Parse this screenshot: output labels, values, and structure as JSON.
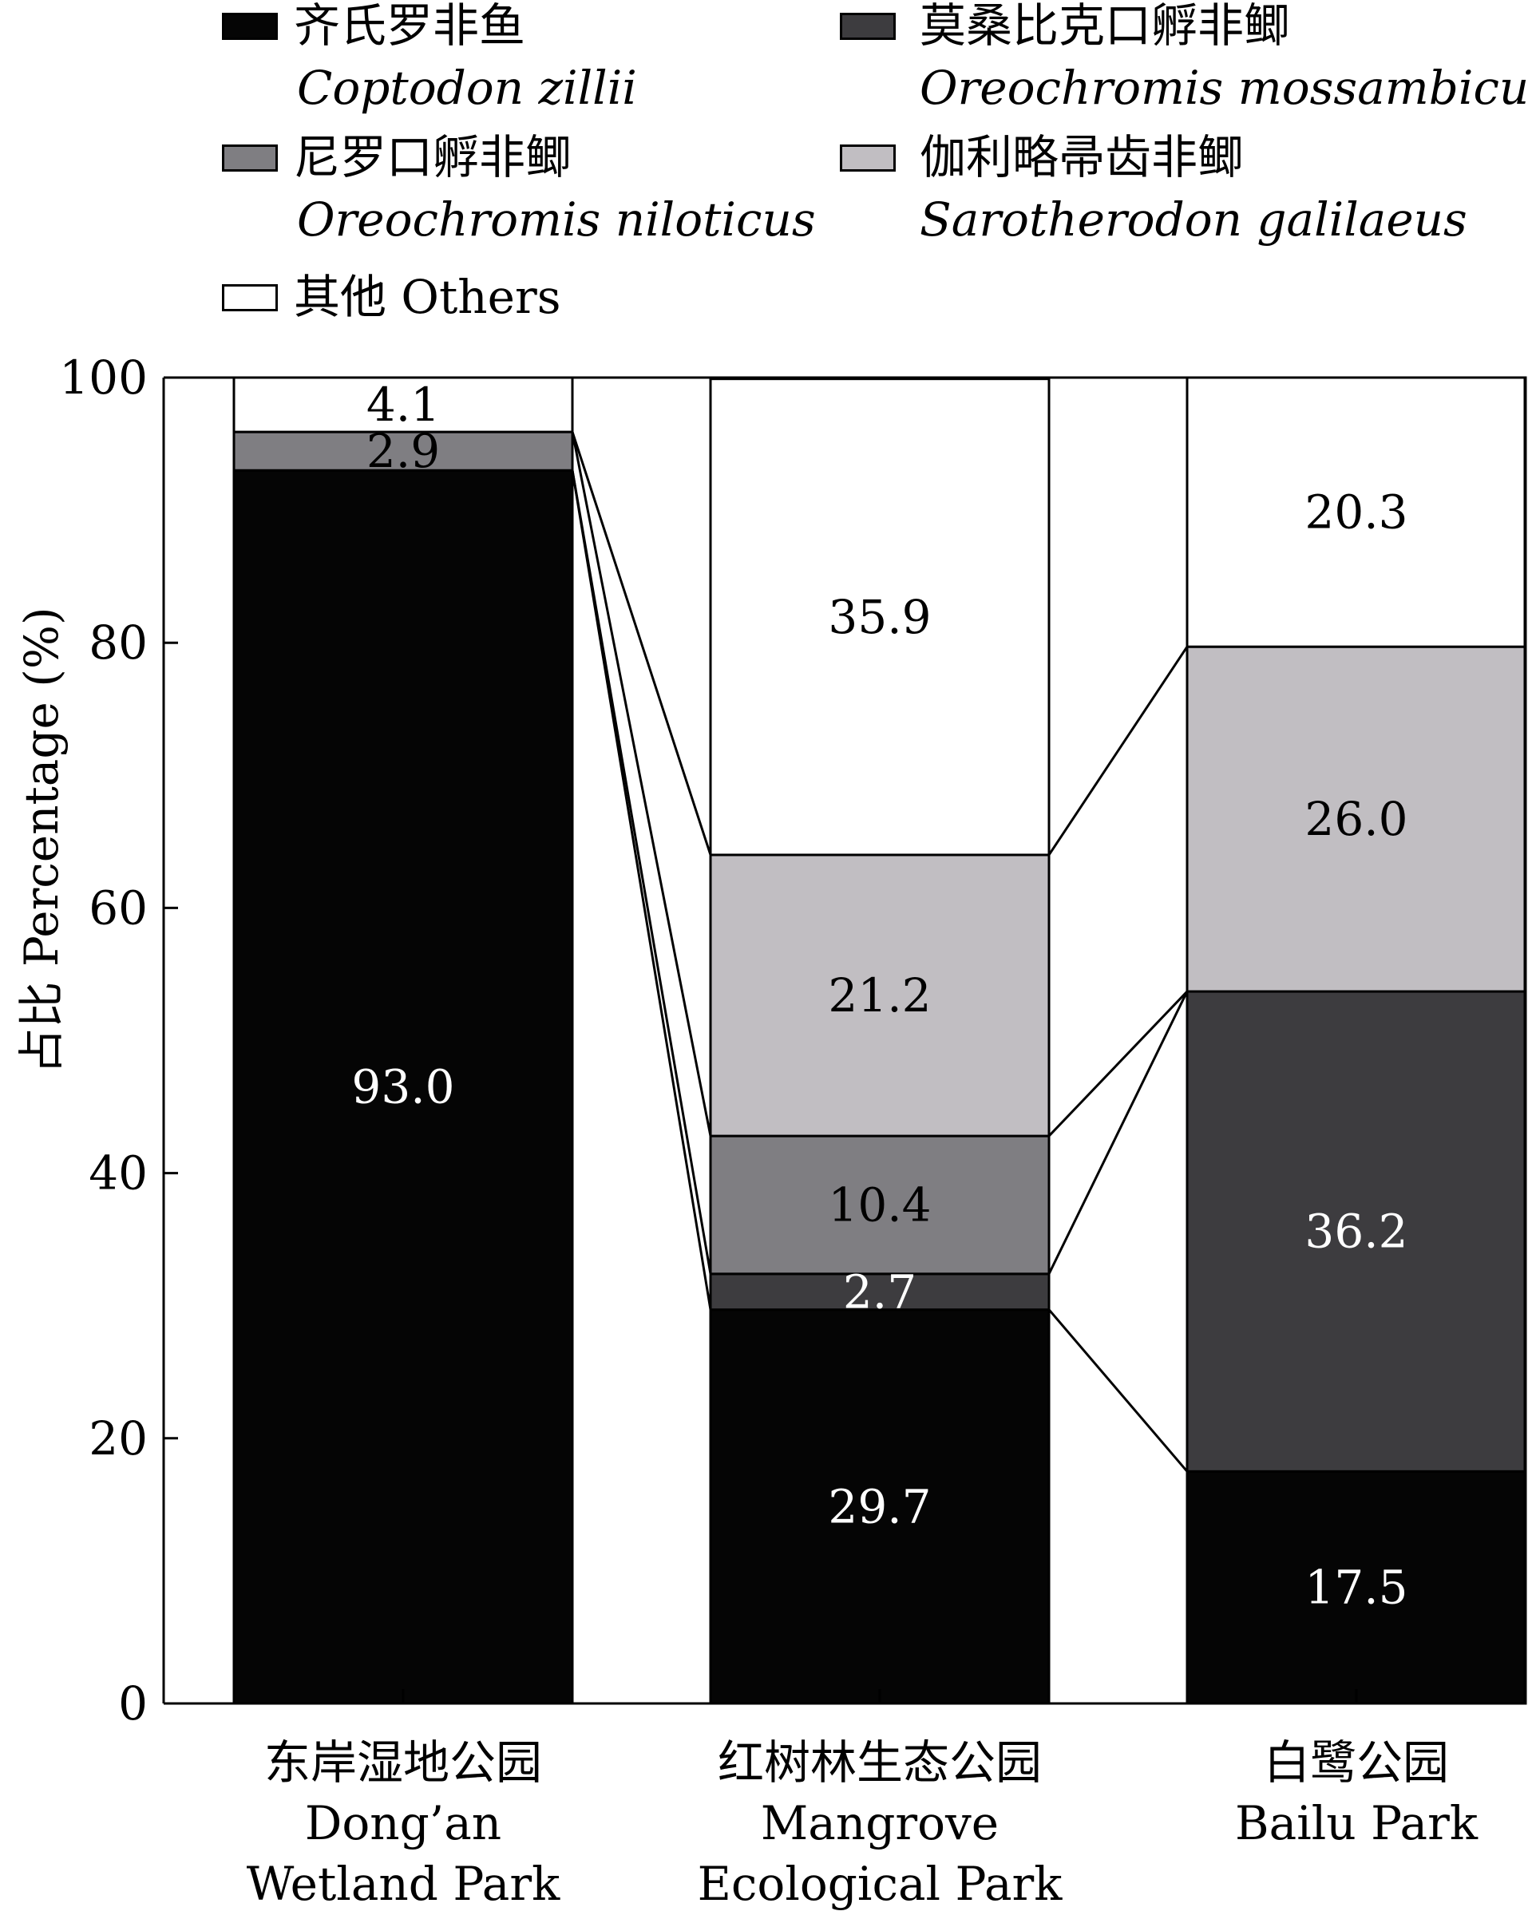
{
  "chart_data": {
    "type": "bar",
    "stacked": true,
    "ylabel": "占比 Percentage (%)",
    "ylim": [
      0,
      100
    ],
    "yticks": [
      0,
      20,
      40,
      60,
      80,
      100
    ],
    "categories": [
      {
        "cn": "东岸湿地公园",
        "en": [
          "Dong’an",
          "Wetland Park"
        ]
      },
      {
        "cn": "红树林生态公园",
        "en": [
          "Mangrove",
          "Ecological Park"
        ]
      },
      {
        "cn": "白鹭公园",
        "en": [
          "Bailu Park"
        ]
      }
    ],
    "series": [
      {
        "name_cn": "齐氏罗非鱼",
        "name_latin": "Coptodon zillii",
        "color": "#050505",
        "text_color": "#ffffff",
        "values": [
          93.0,
          29.7,
          17.5
        ]
      },
      {
        "name_cn": "莫桑比克口孵非鲫",
        "name_latin": "Oreochromis mossambicus",
        "color": "#3d3c3f",
        "text_color": "#ffffff",
        "values": [
          0,
          2.7,
          36.2
        ]
      },
      {
        "name_cn": "尼罗口孵非鲫",
        "name_latin": "Oreochromis niloticus",
        "color": "#7f7e82",
        "text_color": "#000000",
        "values": [
          2.9,
          10.4,
          0
        ]
      },
      {
        "name_cn": "伽利略帚齿非鲫",
        "name_latin": "Sarotherodon galilaeus",
        "color": "#c1bec2",
        "text_color": "#000000",
        "values": [
          0,
          21.2,
          26.0
        ]
      },
      {
        "name_cn": "其他 Others",
        "name_latin": "",
        "color": "#ffffff",
        "text_color": "#000000",
        "values": [
          4.1,
          35.9,
          20.3
        ]
      }
    ],
    "data_labels": [
      [
        "93.0",
        "29.7",
        "17.5"
      ],
      [
        "",
        "2.7",
        "36.2"
      ],
      [
        "2.9",
        "10.4",
        ""
      ],
      [
        "",
        "21.2",
        "26.0"
      ],
      [
        "4.1",
        "35.9",
        "20.3"
      ]
    ]
  }
}
